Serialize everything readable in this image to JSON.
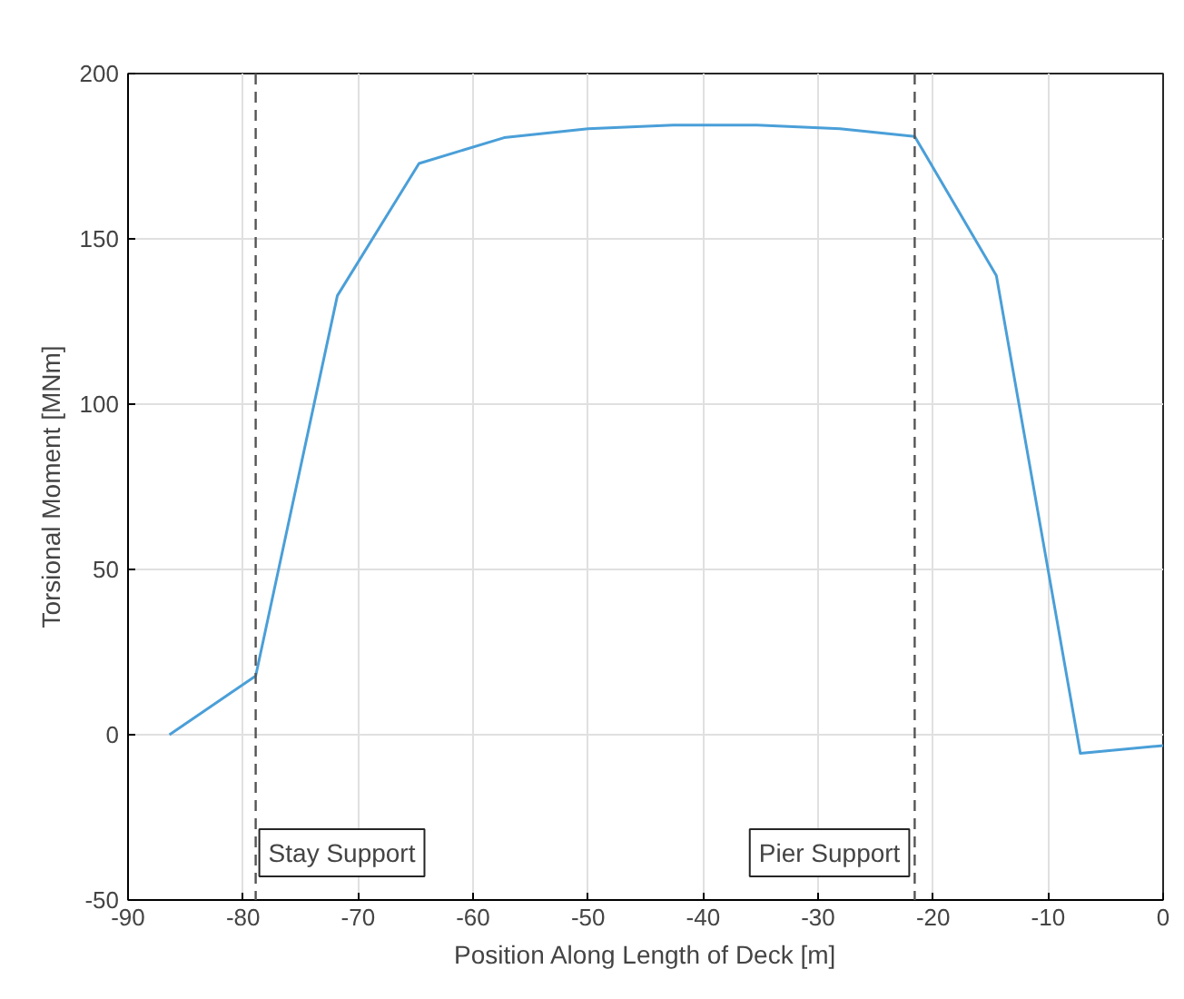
{
  "chart_data": {
    "type": "line",
    "xlabel": "Position Along Length of Deck [m]",
    "ylabel": "Torsional Moment [MNm]",
    "x": [
      -86.4,
      -78.9,
      -71.8,
      -64.7,
      -57.3,
      -50.0,
      -42.6,
      -35.3,
      -28.1,
      -21.6,
      -14.5,
      -7.2,
      0
    ],
    "series": [
      {
        "color": "#4a9fd8",
        "values": [
          0,
          17.8,
          132.8,
          172.8,
          180.6,
          183.3,
          184.4,
          184.4,
          183.3,
          181,
          138.9,
          -5.6,
          -3.3
        ]
      }
    ],
    "xlim": [
      -90,
      0
    ],
    "ylim": [
      -50,
      200
    ],
    "xticks": [
      -90,
      -80,
      -70,
      -60,
      -50,
      -40,
      -30,
      -20,
      -10,
      0
    ],
    "yticks": [
      -50,
      0,
      50,
      100,
      150,
      200
    ],
    "grid": true,
    "line_style": "solid",
    "marker": "none",
    "ref_lines": [
      {
        "axis": "x",
        "value": -78.9,
        "label": "Stay Support",
        "color": "#555555",
        "line_style": "dashed"
      },
      {
        "axis": "x",
        "value": -21.6,
        "label": "Pier Support",
        "color": "#555555",
        "line_style": "dashed"
      }
    ]
  }
}
